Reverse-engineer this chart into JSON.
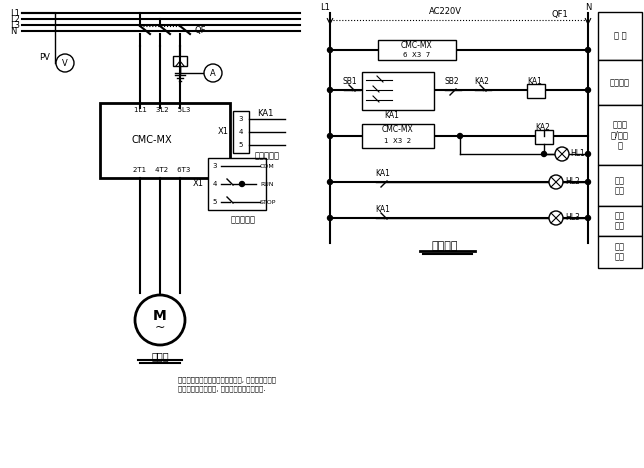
{
  "bg_color": "#ffffff",
  "line_color": "#000000",
  "fig_width": 6.44,
  "fig_height": 4.68,
  "labels": {
    "L1": "L1",
    "L2": "L2",
    "L3": "L3",
    "N": "N",
    "QF": "QF",
    "PV": "PV",
    "single_ctrl": "单节点控制",
    "double_ctrl": "双节点控制",
    "COM": "COM",
    "RUN": "RUN",
    "STOP": "STOP",
    "main_circuit": "主回路",
    "ctrl_circuit": "控制回路",
    "AC220V": "AC220V",
    "QF1": "QF1",
    "micro_break": "微 断",
    "ctrl_power": "控制电源",
    "soft_start": "软起动\n起/停控\n制",
    "fault_ind": "故障\n指示",
    "run_ind": "运行\n指示",
    "stop_ind": "停止\n指示",
    "note_line1": "此控制回路图以出厂参数设置为准, 如用户对继电器",
    "note_line2": "的输出方式进行修改, 需对此图做相应的调整."
  }
}
